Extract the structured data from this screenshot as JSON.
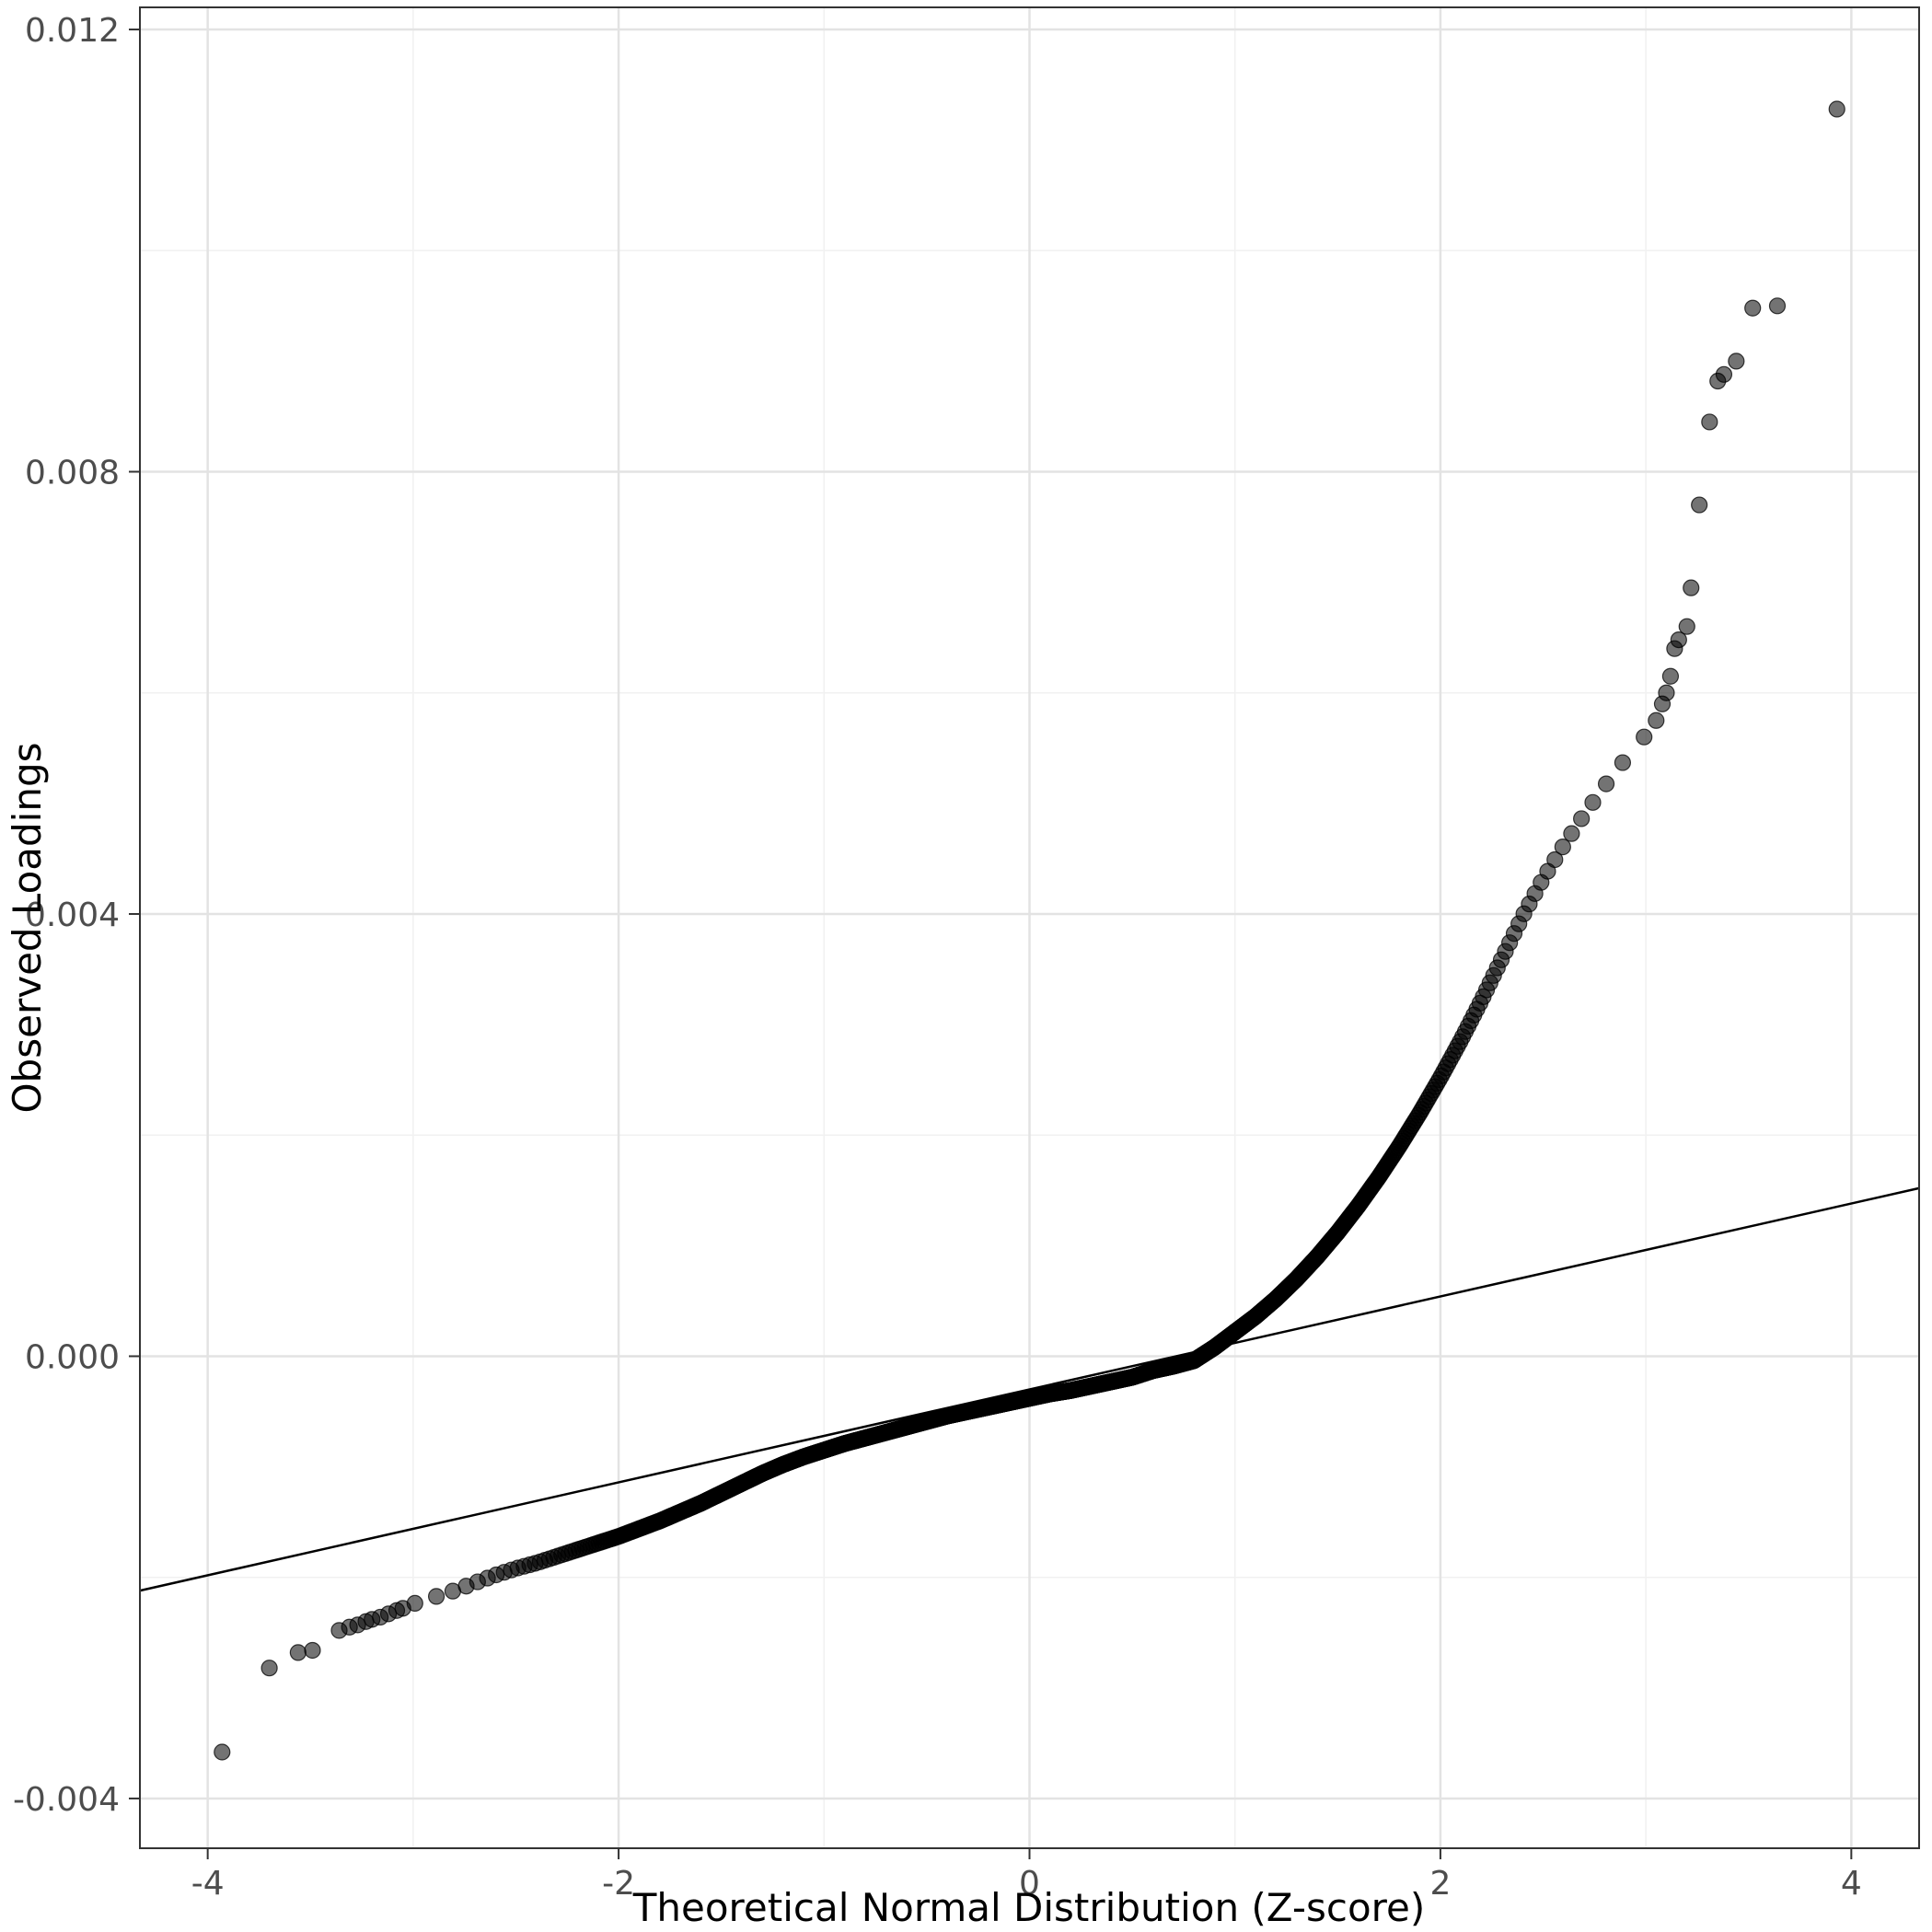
{
  "chart_data": {
    "type": "scatter",
    "subtype": "qq-plot",
    "title": "",
    "xlabel": "Theoretical Normal Distribution (Z-score)",
    "ylabel": "Observed Loadings",
    "xlim": [
      -4.33,
      4.33
    ],
    "ylim": [
      -0.00445,
      0.0122
    ],
    "grid": true,
    "legend_position": "none",
    "x_ticks": {
      "values": [
        -4,
        -2,
        0,
        2,
        4
      ],
      "labels": [
        "-4",
        "-2",
        "0",
        "2",
        "4"
      ]
    },
    "y_ticks": {
      "values": [
        -0.004,
        0.0,
        0.004,
        0.008,
        0.012
      ],
      "labels": [
        "-0.004",
        "0.000",
        "0.004",
        "0.008",
        "0.012"
      ]
    },
    "x_minor": [
      -3,
      -1,
      1,
      3
    ],
    "y_minor": [
      -0.002,
      0.002,
      0.006,
      0.01
    ],
    "reference_line": {
      "type": "qq-line",
      "x": [
        -4.33,
        4.33
      ],
      "y": [
        -0.00212,
        0.00152
      ]
    },
    "points": {
      "style": {
        "radius": 8.5,
        "fill": "#000000",
        "fill_opacity": 0.55,
        "stroke": "#000000",
        "stroke_opacity": 0.75,
        "stroke_width": 1.2
      },
      "dense_curve": {
        "description": "Heavy-tailed QQ scatter; z-values are standard normal quantiles (i-0.5)/n, y interpolated along anchors",
        "n_points": 1800,
        "z_clip": [
          -3.04,
          3.01
        ],
        "anchors_z": [
          -3.1,
          -3.0,
          -2.9,
          -2.8,
          -2.7,
          -2.6,
          -2.5,
          -2.4,
          -2.3,
          -2.2,
          -2.1,
          -2.0,
          -1.9,
          -1.8,
          -1.7,
          -1.6,
          -1.5,
          -1.4,
          -1.3,
          -1.2,
          -1.1,
          -1.0,
          -0.9,
          -0.8,
          -0.7,
          -0.6,
          -0.5,
          -0.4,
          -0.3,
          -0.2,
          -0.1,
          0.0,
          0.1,
          0.2,
          0.3,
          0.4,
          0.5,
          0.6,
          0.7,
          0.8,
          0.9,
          1.0,
          1.1,
          1.2,
          1.3,
          1.4,
          1.5,
          1.6,
          1.7,
          1.8,
          1.9,
          2.0,
          2.1,
          2.2,
          2.3,
          2.4,
          2.5,
          2.6,
          2.7,
          2.8,
          2.9,
          3.0
        ],
        "anchors_y": [
          -0.0023,
          -0.00224,
          -0.00218,
          -0.00212,
          -0.00205,
          -0.00198,
          -0.00192,
          -0.00187,
          -0.00181,
          -0.00175,
          -0.00169,
          -0.00163,
          -0.00156,
          -0.00149,
          -0.00141,
          -0.00133,
          -0.00124,
          -0.00115,
          -0.00106,
          -0.00098,
          -0.00091,
          -0.00085,
          -0.00079,
          -0.00074,
          -0.00069,
          -0.00064,
          -0.00059,
          -0.00054,
          -0.0005,
          -0.00046,
          -0.00042,
          -0.00038,
          -0.00034,
          -0.00031,
          -0.00027,
          -0.00023,
          -0.00019,
          -0.00013,
          -9e-05,
          -4e-05,
          8e-05,
          0.00022,
          0.00036,
          0.00052,
          0.0007,
          0.0009,
          0.00112,
          0.00136,
          0.00162,
          0.0019,
          0.0022,
          0.00252,
          0.00286,
          0.00322,
          0.0036,
          0.00398,
          0.00432,
          0.00462,
          0.0049,
          0.00516,
          0.0054,
          0.00562
        ]
      },
      "outliers": [
        [
          -3.93,
          -0.00358
        ],
        [
          -3.7,
          -0.00282
        ],
        [
          -3.56,
          -0.00268
        ],
        [
          -3.49,
          -0.00266
        ],
        [
          -3.36,
          -0.00248
        ],
        [
          -3.31,
          -0.00245
        ],
        [
          -3.27,
          -0.00243
        ],
        [
          -3.23,
          -0.0024
        ],
        [
          -3.2,
          -0.00238
        ],
        [
          -3.16,
          -0.00236
        ],
        [
          -3.12,
          -0.00233
        ],
        [
          -3.08,
          -0.0023
        ],
        [
          -3.05,
          -0.00228
        ],
        [
          3.05,
          0.00575
        ],
        [
          3.08,
          0.0059
        ],
        [
          3.1,
          0.006
        ],
        [
          3.12,
          0.00615
        ],
        [
          3.14,
          0.0064
        ],
        [
          3.16,
          0.00648
        ],
        [
          3.2,
          0.0066
        ],
        [
          3.22,
          0.00695
        ],
        [
          3.26,
          0.0077
        ],
        [
          3.31,
          0.00845
        ],
        [
          3.35,
          0.00882
        ],
        [
          3.38,
          0.00888
        ],
        [
          3.44,
          0.009
        ],
        [
          3.52,
          0.00948
        ],
        [
          3.64,
          0.0095
        ],
        [
          3.93,
          0.01128
        ]
      ]
    },
    "colors": {
      "background": "#ffffff",
      "panel_background": "#ffffff",
      "grid_major": "#e3e3e3",
      "grid_minor": "#f1f1f1",
      "panel_border": "#333333",
      "tick_mark": "#333333",
      "tick_label": "#4d4d4d",
      "axis_title": "#000000",
      "point": "#000000",
      "reference_line": "#000000"
    }
  }
}
